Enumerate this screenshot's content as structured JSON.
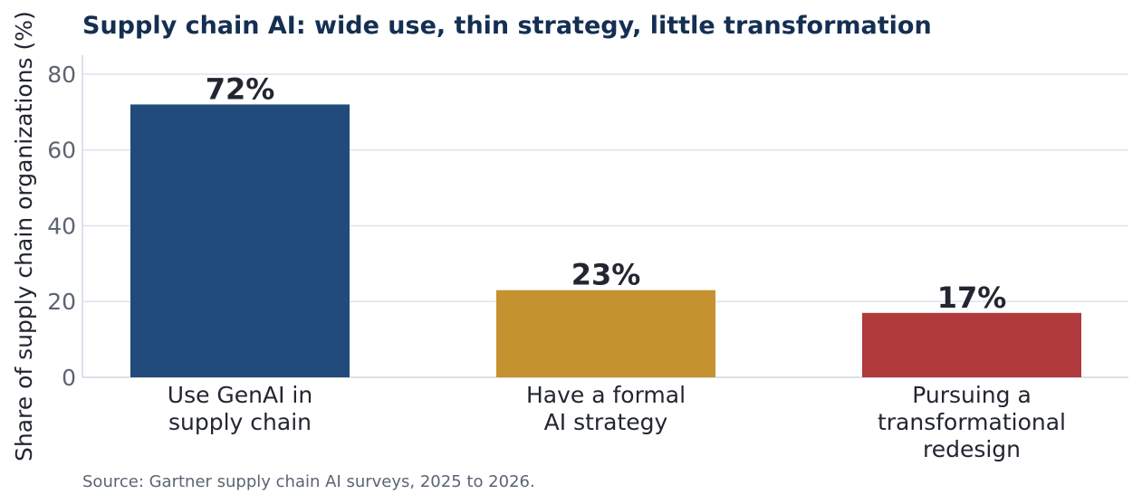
{
  "chart_data": {
    "type": "bar",
    "title": "Supply chain AI: wide use, thin strategy, little transformation",
    "xlabel": "",
    "ylabel": "Share of supply chain organizations (%)",
    "ylim": [
      0,
      85
    ],
    "yticks": [
      0,
      20,
      40,
      60,
      80
    ],
    "grid": true,
    "categories": [
      "Use GenAI in\nsupply chain",
      "Have a formal\nAI strategy",
      "Pursuing a\ntransformational\nredesign"
    ],
    "values": [
      72,
      23,
      17
    ],
    "data_labels": [
      "72%",
      "23%",
      "17%"
    ],
    "colors": [
      "#214b7a",
      "#c4922f",
      "#b0393b"
    ],
    "source": "Source: Gartner supply chain AI surveys, 2025 to 2026."
  }
}
